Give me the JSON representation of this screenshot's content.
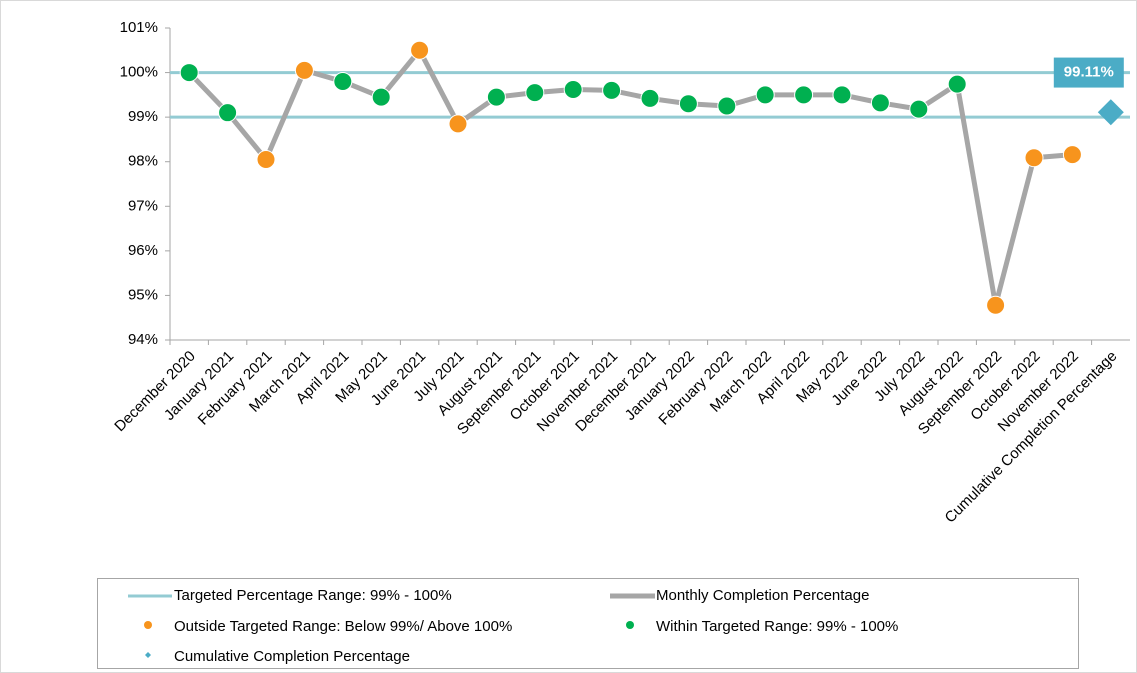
{
  "chart_data": {
    "type": "line",
    "categories": [
      "December 2020",
      "January 2021",
      "February 2021",
      "March 2021",
      "April 2021",
      "May 2021",
      "June 2021",
      "July 2021",
      "August 2021",
      "September 2021",
      "October 2021",
      "November 2021",
      "December 2021",
      "January 2022",
      "February 2022",
      "March 2022",
      "April 2022",
      "May 2022",
      "June 2022",
      "July 2022",
      "August 2022",
      "September 2022",
      "October 2022",
      "November 2022",
      "Cumulative Completion Percentage"
    ],
    "ylim": [
      94,
      101
    ],
    "yticks": [
      {
        "value": 94,
        "label": "94%"
      },
      {
        "value": 95,
        "label": "95%"
      },
      {
        "value": 96,
        "label": "96%"
      },
      {
        "value": 97,
        "label": "97%"
      },
      {
        "value": 98,
        "label": "98%"
      },
      {
        "value": 99,
        "label": "99%"
      },
      {
        "value": 100,
        "label": "100%"
      },
      {
        "value": 101,
        "label": "101%"
      }
    ],
    "target_range": {
      "name": "Targeted Percentage Range: 99% - 100%",
      "color": "#93cbd3",
      "values": [
        99,
        100
      ]
    },
    "series": [
      {
        "name": "Monthly Completion Percentage",
        "color": "#a6a6a6",
        "style": "line",
        "values": [
          100.0,
          99.1,
          98.05,
          100.05,
          99.8,
          99.45,
          100.5,
          98.85,
          99.45,
          99.55,
          99.62,
          99.6,
          99.42,
          99.3,
          99.25,
          99.5,
          99.5,
          99.5,
          99.32,
          99.18,
          99.74,
          94.78,
          98.09,
          98.16,
          null
        ]
      },
      {
        "name": "Outside Targeted Range: Below 99%/ Above 100%",
        "color": "#f7941d",
        "style": "dot",
        "values": [
          null,
          null,
          98.05,
          100.05,
          null,
          null,
          100.5,
          98.85,
          null,
          null,
          null,
          null,
          null,
          null,
          null,
          null,
          null,
          null,
          null,
          null,
          null,
          94.78,
          98.09,
          98.16,
          null
        ]
      },
      {
        "name": "Within Targeted Range: 99% - 100%",
        "color": "#00b050",
        "style": "dot",
        "values": [
          100.0,
          99.1,
          null,
          null,
          99.8,
          99.45,
          null,
          null,
          99.45,
          99.55,
          99.62,
          99.6,
          99.42,
          99.3,
          99.25,
          99.5,
          99.5,
          99.5,
          99.32,
          99.18,
          99.74,
          null,
          null,
          null,
          null
        ]
      },
      {
        "name": "Cumulative Completion Percentage",
        "color": "#4bacc6",
        "style": "diamond",
        "values": [
          null,
          null,
          null,
          null,
          null,
          null,
          null,
          null,
          null,
          null,
          null,
          null,
          null,
          null,
          null,
          null,
          null,
          null,
          null,
          null,
          null,
          null,
          null,
          null,
          99.11
        ],
        "value_labels": [
          null,
          null,
          null,
          null,
          null,
          null,
          null,
          null,
          null,
          null,
          null,
          null,
          null,
          null,
          null,
          null,
          null,
          null,
          null,
          null,
          null,
          null,
          null,
          null,
          "99.11%"
        ]
      }
    ]
  }
}
